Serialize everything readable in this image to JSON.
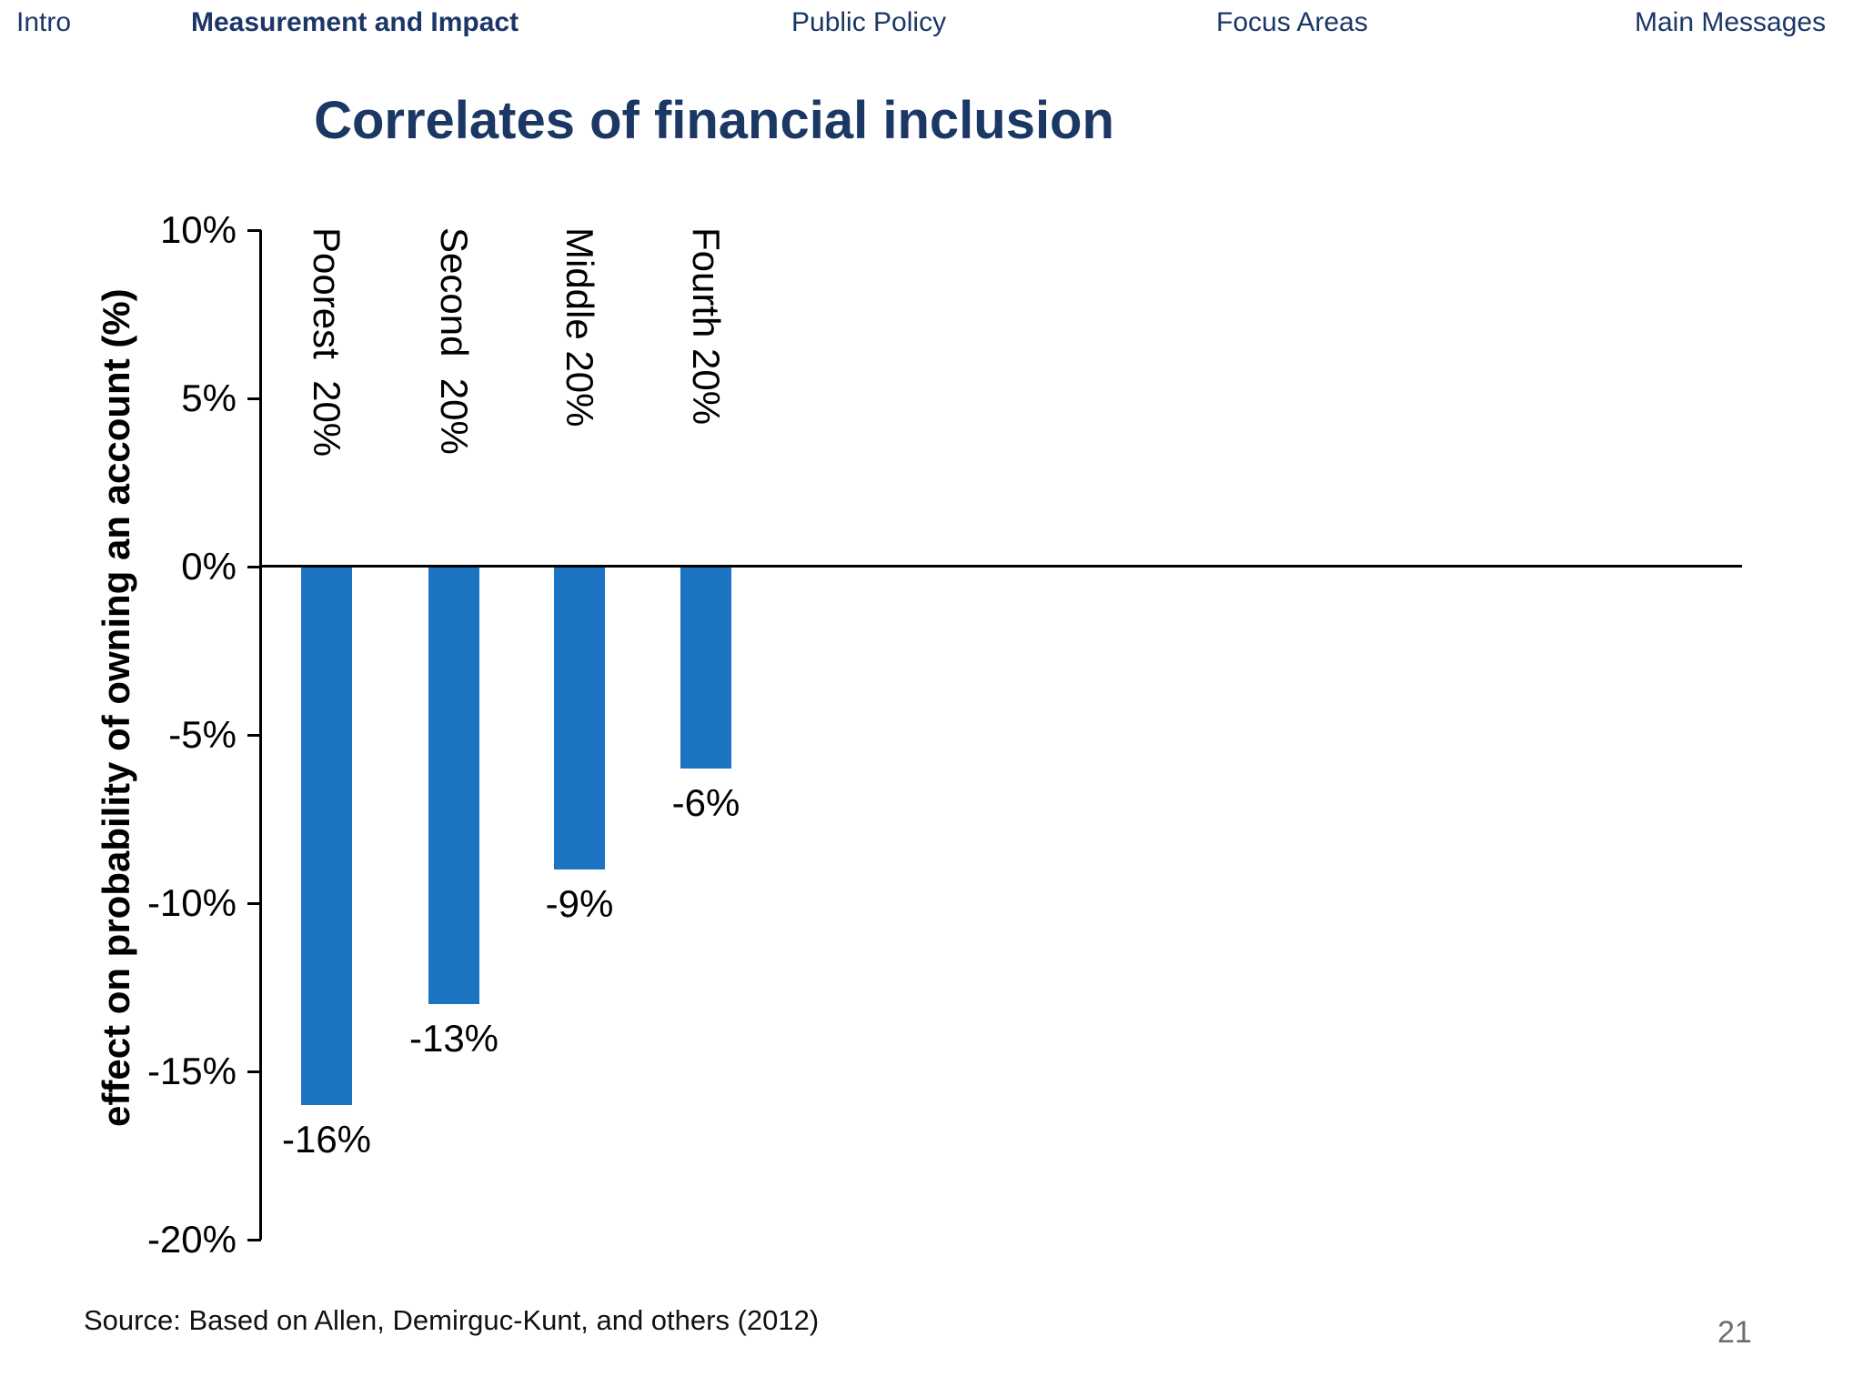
{
  "nav": {
    "items": [
      {
        "label": "Intro",
        "active": false
      },
      {
        "label": "Measurement and Impact",
        "active": true
      },
      {
        "label": "Public Policy",
        "active": false
      },
      {
        "label": "Focus Areas",
        "active": false
      },
      {
        "label": "Main Messages",
        "active": false
      }
    ]
  },
  "title": "Correlates of financial inclusion",
  "chart_data": {
    "type": "bar",
    "title": "Correlates of financial inclusion",
    "categories": [
      "Poorest  20%",
      "Second  20%",
      "Middle 20%",
      "Fourth 20%"
    ],
    "values": [
      -16,
      -13,
      -9,
      -6
    ],
    "data_labels": [
      "-16%",
      "-13%",
      "-9%",
      "-6%"
    ],
    "xlabel": "",
    "ylabel": "effect on probability of owning an account (%)",
    "ylim": [
      -20,
      10
    ],
    "yticks": [
      {
        "value": 10,
        "label": "10%"
      },
      {
        "value": 5,
        "label": "5%"
      },
      {
        "value": 0,
        "label": "0%"
      },
      {
        "value": -5,
        "label": "-5%"
      },
      {
        "value": -10,
        "label": "-10%"
      },
      {
        "value": -15,
        "label": "-15%"
      },
      {
        "value": -20,
        "label": "-20%"
      }
    ],
    "grid": false,
    "legend": "none",
    "bar_color": "#1b73c2"
  },
  "footer": {
    "source": "Source: Based on Allen, Demirguc-Kunt, and others (2012)",
    "page_number": "21"
  },
  "colors": {
    "nav_navy": "#1b3767",
    "title_navy": "#1b3764",
    "bar_blue": "#1b73c2",
    "axis_black": "#000000",
    "page_number_gray": "#6e6e6e"
  }
}
